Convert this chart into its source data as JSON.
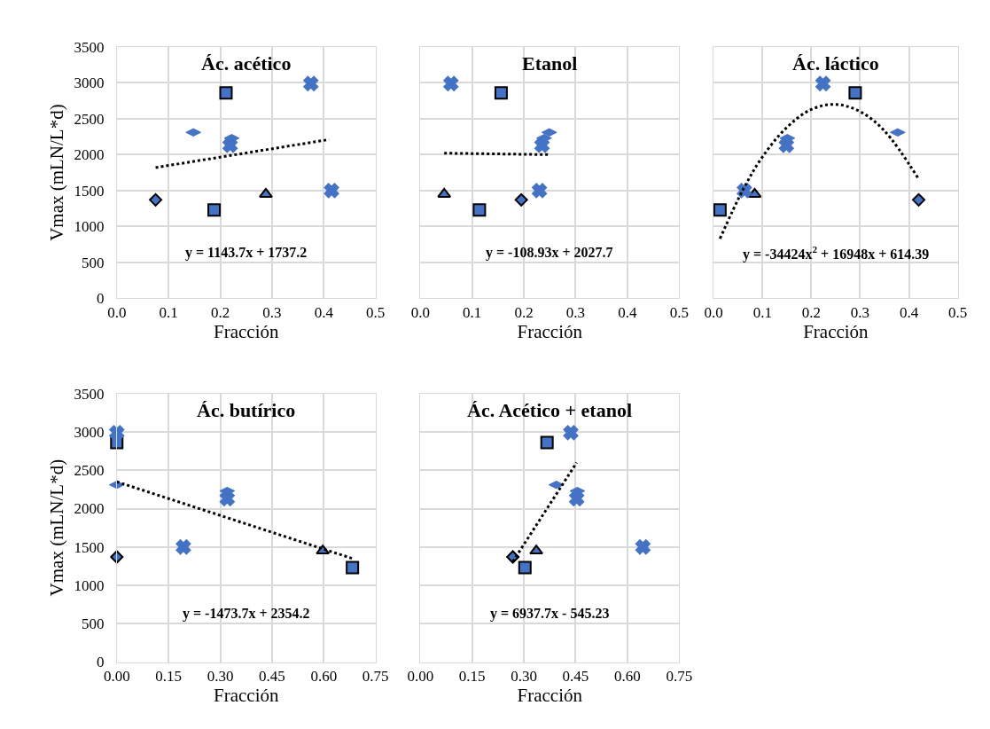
{
  "chart_data": [
    {
      "type": "scatter",
      "title": "Ác. acético",
      "xlabel": "Fracción",
      "ylabel": "Vmax (mLN/L*d)",
      "grid": true,
      "xlim": [
        0,
        0.5
      ],
      "xticks": [
        {
          "value": 0,
          "label": "0.0"
        },
        {
          "value": 0.1,
          "label": "0.1"
        },
        {
          "value": 0.2,
          "label": "0.2"
        },
        {
          "value": 0.3,
          "label": "0.3"
        },
        {
          "value": 0.4,
          "label": "0.4"
        },
        {
          "value": 0.5,
          "label": "0.5"
        }
      ],
      "ylim": [
        0,
        3500
      ],
      "yticks": [
        0,
        500,
        1000,
        1500,
        2000,
        2500,
        3000,
        3500
      ],
      "annotations": [
        "y = 1143.7x + 1737.2"
      ],
      "series": [
        {
          "marker": "diamond",
          "color": "#4472c4",
          "x": [
            0.075
          ],
          "values": [
            1370
          ]
        },
        {
          "marker": "square",
          "color": "#4472c4",
          "x": [
            0.188
          ],
          "values": [
            1230
          ]
        },
        {
          "marker": "triangle",
          "color": "#4472c4",
          "x": [
            0.288
          ],
          "values": [
            1450
          ]
        },
        {
          "marker": "cross",
          "color": "#4472c4",
          "x": [
            0.415
          ],
          "values": [
            1500
          ]
        },
        {
          "marker": "cross",
          "color": "#4472c4",
          "x": [
            0.219
          ],
          "values": [
            2130
          ]
        },
        {
          "color": "#4472c4",
          "x": [
            0.222
          ],
          "values": [
            2230
          ]
        },
        {
          "color": "#4472c4",
          "x": [
            0.148
          ],
          "values": [
            2310
          ]
        },
        {
          "marker": "square",
          "color": "#4472c4",
          "x": [
            0.211
          ],
          "values": [
            2860
          ]
        },
        {
          "marker": "cross",
          "color": "#4472c4",
          "x": [
            0.375
          ],
          "values": [
            2990
          ]
        },
        {
          "type": "line",
          "line_style": "dotted",
          "marker": "none",
          "color": "#000000",
          "x": [
            0.075,
            0.41
          ],
          "values": [
            1820,
            2210
          ]
        }
      ]
    },
    {
      "type": "scatter",
      "title": "Etanol",
      "xlabel": "Fracción",
      "grid": true,
      "tick_labels": "x",
      "xlim": [
        0,
        0.5
      ],
      "xticks": [
        {
          "value": 0,
          "label": "0.0"
        },
        {
          "value": 0.1,
          "label": "0.1"
        },
        {
          "value": 0.2,
          "label": "0.2"
        },
        {
          "value": 0.3,
          "label": "0.3"
        },
        {
          "value": 0.4,
          "label": "0.4"
        },
        {
          "value": 0.5,
          "label": "0.5"
        }
      ],
      "ylim": [
        0,
        3500
      ],
      "yticks": [
        0,
        500,
        1000,
        1500,
        2000,
        2500,
        3000,
        3500
      ],
      "annotations": [
        "y = -108.93x + 2027.7"
      ],
      "series": [
        {
          "marker": "diamond",
          "color": "#4472c4",
          "x": [
            0.195
          ],
          "values": [
            1370
          ]
        },
        {
          "marker": "square",
          "color": "#4472c4",
          "x": [
            0.114
          ],
          "values": [
            1230
          ]
        },
        {
          "marker": "triangle",
          "color": "#4472c4",
          "x": [
            0.046
          ],
          "values": [
            1450
          ]
        },
        {
          "marker": "cross",
          "color": "#4472c4",
          "x": [
            0.23
          ],
          "values": [
            1500
          ]
        },
        {
          "marker": "cross",
          "color": "#4472c4",
          "x": [
            0.235
          ],
          "values": [
            2130
          ]
        },
        {
          "color": "#4472c4",
          "x": [
            0.239
          ],
          "values": [
            2230
          ]
        },
        {
          "color": "#4472c4",
          "x": [
            0.249
          ],
          "values": [
            2310
          ]
        },
        {
          "marker": "square",
          "color": "#4472c4",
          "x": [
            0.156
          ],
          "values": [
            2860
          ]
        },
        {
          "marker": "cross",
          "color": "#4472c4",
          "x": [
            0.059
          ],
          "values": [
            2990
          ]
        },
        {
          "type": "line",
          "line_style": "dotted",
          "marker": "none",
          "color": "#000000",
          "x": [
            0.046,
            0.249
          ],
          "values": [
            2020,
            2000
          ]
        }
      ]
    },
    {
      "type": "scatter",
      "title": "Ác. láctico",
      "xlabel": "Fracción",
      "grid": true,
      "tick_labels": "x",
      "xlim": [
        0,
        0.5
      ],
      "xticks": [
        {
          "value": 0,
          "label": "0.0"
        },
        {
          "value": 0.1,
          "label": "0.1"
        },
        {
          "value": 0.2,
          "label": "0.2"
        },
        {
          "value": 0.3,
          "label": "0.3"
        },
        {
          "value": 0.4,
          "label": "0.4"
        },
        {
          "value": 0.5,
          "label": "0.5"
        }
      ],
      "ylim": [
        0,
        3500
      ],
      "yticks": [
        0,
        500,
        1000,
        1500,
        2000,
        2500,
        3000,
        3500
      ],
      "annotations": [
        "y = -34424x$^{2}$ + 16948x + 614.39"
      ],
      "series": [
        {
          "marker": "diamond",
          "color": "#4472c4",
          "x": [
            0.42
          ],
          "values": [
            1370
          ]
        },
        {
          "marker": "square",
          "color": "#4472c4",
          "x": [
            0.013
          ],
          "values": [
            1230
          ]
        },
        {
          "marker": "triangle",
          "color": "#4472c4",
          "x": [
            0.084
          ],
          "values": [
            1450
          ]
        },
        {
          "marker": "cross",
          "color": "#4472c4",
          "x": [
            0.063
          ],
          "values": [
            1500
          ]
        },
        {
          "marker": "cross",
          "color": "#4472c4",
          "x": [
            0.149
          ],
          "values": [
            2130
          ]
        },
        {
          "color": "#4472c4",
          "x": [
            0.151
          ],
          "values": [
            2230
          ]
        },
        {
          "color": "#4472c4",
          "x": [
            0.377
          ],
          "values": [
            2310
          ]
        },
        {
          "marker": "square",
          "color": "#4472c4",
          "x": [
            0.29
          ],
          "values": [
            2860
          ]
        },
        {
          "marker": "cross",
          "color": "#4472c4",
          "x": [
            0.224
          ],
          "values": [
            2990
          ]
        },
        {
          "type": "line",
          "line_style": "dotted",
          "marker": "none",
          "color": "#000000",
          "x": [
            0.013,
            0.06,
            0.1,
            0.15,
            0.2,
            0.25,
            0.3,
            0.35,
            0.42
          ],
          "values": [
            830,
            1510,
            1970,
            2380,
            2630,
            2700,
            2600,
            2330,
            1660
          ]
        }
      ]
    },
    {
      "type": "scatter",
      "title": "Ác. butírico",
      "xlabel": "Fracción",
      "ylabel": "Vmax (mLN/L*d)",
      "grid": true,
      "xlim": [
        0,
        0.75
      ],
      "xticks": [
        {
          "value": 0,
          "label": "0.00"
        },
        {
          "value": 0.15,
          "label": "0.15"
        },
        {
          "value": 0.3,
          "label": "0.30"
        },
        {
          "value": 0.45,
          "label": "0.45"
        },
        {
          "value": 0.6,
          "label": "0.60"
        },
        {
          "value": 0.75,
          "label": "0.75"
        }
      ],
      "ylim": [
        0,
        3500
      ],
      "yticks": [
        0,
        500,
        1000,
        1500,
        2000,
        2500,
        3000,
        3500
      ],
      "annotations": [
        "y = -1473.7x + 2354.2"
      ],
      "series": [
        {
          "marker": "diamond",
          "color": "#4472c4",
          "x": [
            0.0
          ],
          "values": [
            1370
          ]
        },
        {
          "marker": "square",
          "color": "#4472c4",
          "x": [
            0.683
          ],
          "values": [
            1230
          ]
        },
        {
          "marker": "triangle",
          "color": "#4472c4",
          "x": [
            0.597
          ],
          "values": [
            1450
          ]
        },
        {
          "marker": "cross",
          "color": "#4472c4",
          "x": [
            0.193
          ],
          "values": [
            1500
          ]
        },
        {
          "marker": "cross",
          "color": "#4472c4",
          "x": [
            0.32
          ],
          "values": [
            2130
          ]
        },
        {
          "color": "#4472c4",
          "x": [
            0.32
          ],
          "values": [
            2230
          ]
        },
        {
          "color": "#4472c4",
          "x": [
            0.0
          ],
          "values": [
            2310
          ]
        },
        {
          "marker": "square",
          "color": "#4472c4",
          "x": [
            0.0
          ],
          "values": [
            2860
          ]
        },
        {
          "marker": "cross",
          "color": "#4472c4",
          "x": [
            0.0
          ],
          "values": [
            2990
          ]
        },
        {
          "type": "line",
          "line_style": "dotted",
          "marker": "none",
          "color": "#000000",
          "x": [
            0.0,
            0.683
          ],
          "values": [
            2350,
            1350
          ]
        }
      ]
    },
    {
      "type": "scatter",
      "title": "Ác. Acético + etanol",
      "xlabel": "Fracción",
      "grid": true,
      "tick_labels": "x",
      "xlim": [
        0,
        0.75
      ],
      "xticks": [
        {
          "value": 0,
          "label": "0.00"
        },
        {
          "value": 0.15,
          "label": "0.15"
        },
        {
          "value": 0.3,
          "label": "0.30"
        },
        {
          "value": 0.45,
          "label": "0.45"
        },
        {
          "value": 0.6,
          "label": "0.60"
        },
        {
          "value": 0.75,
          "label": "0.75"
        }
      ],
      "ylim": [
        0,
        3500
      ],
      "yticks": [
        0,
        500,
        1000,
        1500,
        2000,
        2500,
        3000,
        3500
      ],
      "annotations": [
        "y = 6937.7x - 545.23"
      ],
      "series": [
        {
          "marker": "diamond",
          "color": "#4472c4",
          "x": [
            0.268
          ],
          "values": [
            1370
          ]
        },
        {
          "marker": "square",
          "color": "#4472c4",
          "x": [
            0.303
          ],
          "values": [
            1230
          ]
        },
        {
          "marker": "triangle",
          "color": "#4472c4",
          "x": [
            0.336
          ],
          "values": [
            1450
          ]
        },
        {
          "marker": "cross",
          "color": "#4472c4",
          "x": [
            0.645
          ],
          "values": [
            1500
          ]
        },
        {
          "marker": "cross",
          "color": "#4472c4",
          "x": [
            0.453
          ],
          "values": [
            2130
          ]
        },
        {
          "color": "#4472c4",
          "x": [
            0.455
          ],
          "values": [
            2230
          ]
        },
        {
          "color": "#4472c4",
          "x": [
            0.394
          ],
          "values": [
            2310
          ]
        },
        {
          "marker": "square",
          "color": "#4472c4",
          "x": [
            0.367
          ],
          "values": [
            2860
          ]
        },
        {
          "marker": "cross",
          "color": "#4472c4",
          "x": [
            0.436
          ],
          "values": [
            2990
          ]
        },
        {
          "type": "line",
          "line_style": "dotted",
          "marker": "none",
          "color": "#000000",
          "x": [
            0.268,
            0.453
          ],
          "values": [
            1310,
            2600
          ]
        }
      ]
    }
  ]
}
